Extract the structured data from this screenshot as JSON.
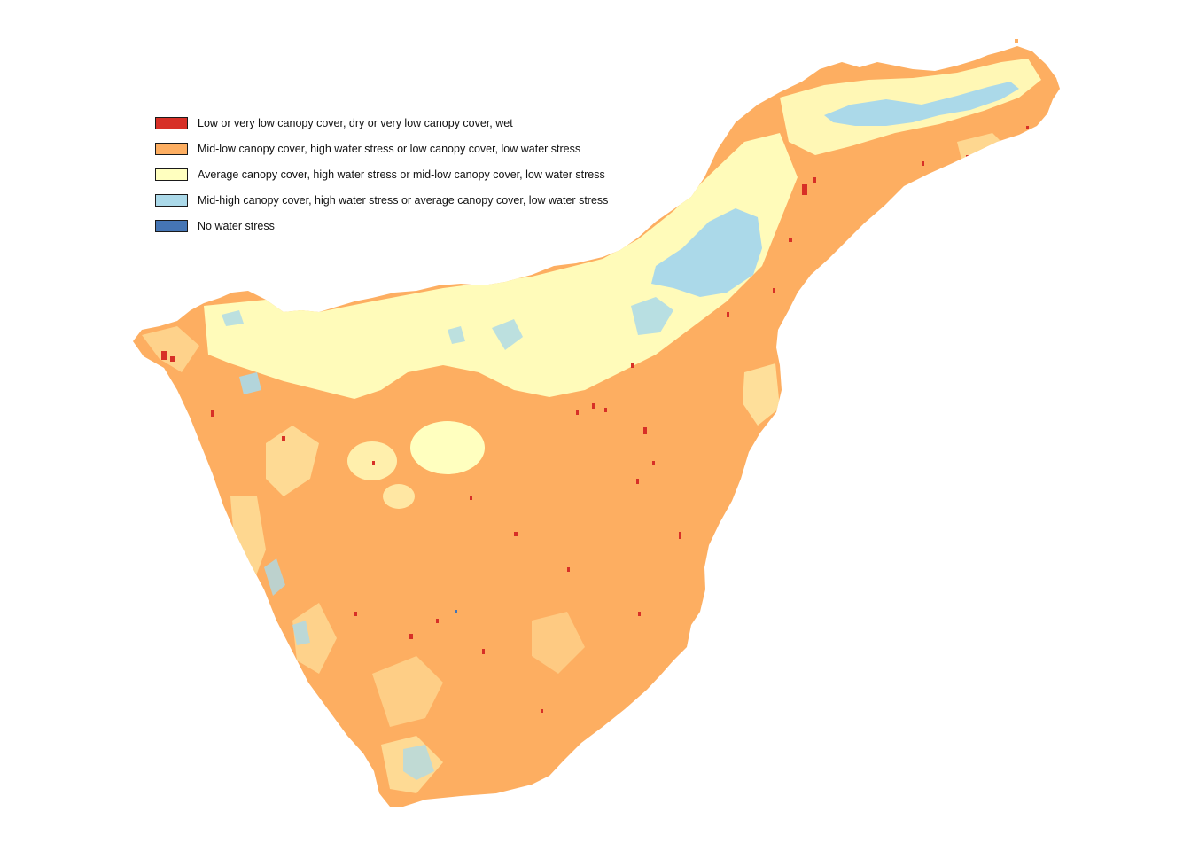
{
  "map": {
    "colors": {
      "background": "#ffffff",
      "class_1": "#d73027",
      "class_2": "#fdae61",
      "class_3": "#ffffbf",
      "class_4": "#abd9e9",
      "class_5": "#4575b4"
    }
  },
  "legend": {
    "items": [
      {
        "label": "Low or very low canopy cover, dry or very low canopy cover, wet",
        "color": "#d73027"
      },
      {
        "label": "Mid-low canopy cover, high water stress or low canopy cover, low water stress",
        "color": "#fdae61"
      },
      {
        "label": "Average canopy cover, high water stress or mid-low canopy cover, low water stress",
        "color": "#ffffbf"
      },
      {
        "label": "Mid-high canopy cover, high water stress or average canopy cover, low water stress",
        "color": "#abd9e9"
      },
      {
        "label": "No water stress",
        "color": "#4575b4"
      }
    ]
  }
}
